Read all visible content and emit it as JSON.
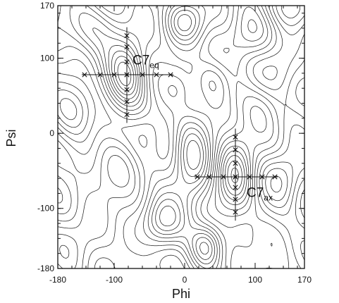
{
  "chart_data": {
    "type": "contour",
    "title": "",
    "xlabel": "Phi",
    "ylabel": "Psi",
    "xlim": [
      -180,
      170
    ],
    "ylim": [
      -180,
      170
    ],
    "x_ticks": [
      {
        "value": -180,
        "label": "-180"
      },
      {
        "value": -100,
        "label": "-100"
      },
      {
        "value": 0,
        "label": "0"
      },
      {
        "value": 100,
        "label": "100"
      },
      {
        "value": 170,
        "label": "170"
      }
    ],
    "y_ticks": [
      {
        "value": 170,
        "label": "170"
      },
      {
        "value": 100,
        "label": "100"
      },
      {
        "value": 0,
        "label": "0"
      },
      {
        "value": -100,
        "label": "-100"
      },
      {
        "value": -180,
        "label": "-180"
      }
    ],
    "minor_tick_step": 20,
    "grid": false,
    "line_color": "#222222",
    "annotations": [
      {
        "id": "c7eq",
        "base": "C7",
        "subscript": "eq",
        "label_at": {
          "phi": -82,
          "psi": 98
        },
        "center": {
          "phi": -82,
          "psi": 78
        },
        "h_markers_phi": [
          -142,
          -120,
          -100,
          -82,
          -60,
          -40,
          -20
        ],
        "v_markers_psi": [
          130,
          115,
          95,
          78,
          58,
          42,
          25
        ]
      },
      {
        "id": "c7ax",
        "base": "C7",
        "subscript": "ax",
        "label_at": {
          "phi": 80,
          "psi": -78
        },
        "center": {
          "phi": 72,
          "psi": -58
        },
        "h_markers_phi": [
          18,
          35,
          55,
          72,
          92,
          110,
          128
        ],
        "v_markers_psi": [
          -5,
          -22,
          -40,
          -58,
          -72,
          -88,
          -105
        ]
      }
    ]
  }
}
